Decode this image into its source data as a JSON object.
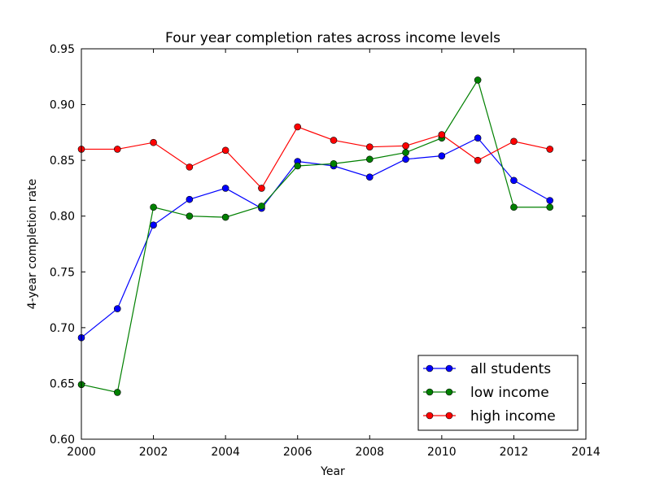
{
  "chart_data": {
    "type": "line",
    "title": "Four year completion rates across income levels",
    "xlabel": "Year",
    "ylabel": "4-year completion rate",
    "xlim": [
      2000,
      2014
    ],
    "ylim": [
      0.6,
      0.95
    ],
    "xticks": [
      "2000",
      "2002",
      "2004",
      "2006",
      "2008",
      "2010",
      "2012",
      "2014"
    ],
    "yticks": [
      "0.60",
      "0.65",
      "0.70",
      "0.75",
      "0.80",
      "0.85",
      "0.90",
      "0.95"
    ],
    "grid": false,
    "legend_position": "bottom-right",
    "x": [
      2000,
      2001,
      2002,
      2003,
      2004,
      2005,
      2006,
      2007,
      2008,
      2009,
      2010,
      2011,
      2012,
      2013
    ],
    "series": [
      {
        "name": "all students",
        "color": "#0000ff",
        "values": [
          0.691,
          0.717,
          0.792,
          0.815,
          0.825,
          0.807,
          0.849,
          0.845,
          0.835,
          0.851,
          0.854,
          0.87,
          0.832,
          0.814
        ]
      },
      {
        "name": "low income",
        "color": "#008000",
        "values": [
          0.649,
          0.642,
          0.808,
          0.8,
          0.799,
          0.809,
          0.845,
          0.847,
          0.851,
          0.857,
          0.87,
          0.922,
          0.808,
          0.808
        ]
      },
      {
        "name": "high income",
        "color": "#ff0000",
        "values": [
          0.86,
          0.86,
          0.866,
          0.844,
          0.859,
          0.825,
          0.88,
          0.868,
          0.862,
          0.863,
          0.873,
          0.85,
          0.867,
          0.86
        ]
      }
    ]
  }
}
